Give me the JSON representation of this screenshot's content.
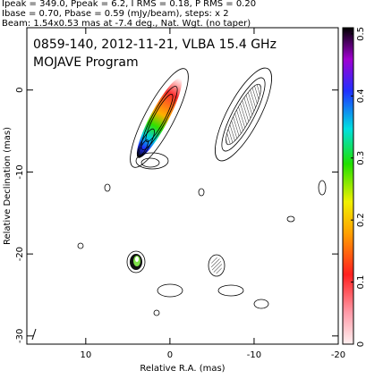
{
  "chart_data": {
    "type": "image",
    "header": [
      "Ipeak = 349.0, Ppeak = 6.2, I RMS = 0.18, P RMS = 0.20",
      "Ibase = 0.70, Pbase = 0.59 (mJy/beam), steps: x 2",
      "Beam: 1.54x0.53 mas at -7.4 deg., Nat. Wgt. (no taper)"
    ],
    "title": "0859-140, 2012-11-21, VLBA 15.4 GHz",
    "subtitle": "MOJAVE Program",
    "xlabel": "Relative R.A. (mas)",
    "ylabel": "Relative Declination (mas)",
    "xlim": [
      17,
      -20
    ],
    "xticks": [
      10,
      0,
      -10,
      -20
    ],
    "ylim": [
      -31,
      7.6
    ],
    "yticks": [
      0,
      -10,
      -20,
      -30
    ],
    "clim": [
      0,
      0.51
    ],
    "cticks": [
      0,
      0.1,
      0.2,
      0.3,
      0.4,
      0.5
    ]
  }
}
